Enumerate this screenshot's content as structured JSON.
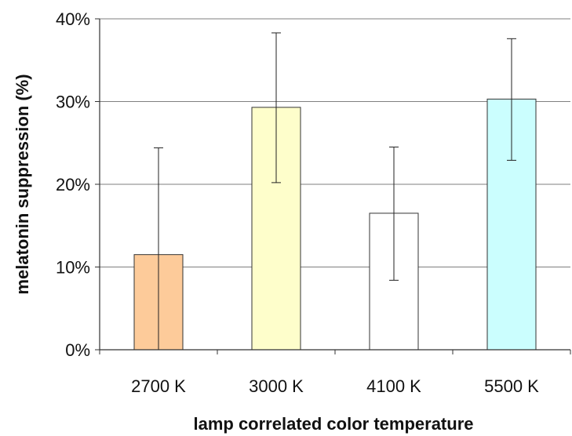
{
  "chart_data": {
    "type": "bar",
    "xlabel": "lamp correlated color temperature",
    "ylabel": "melatonin suppression (%)",
    "ylim": [
      0,
      40
    ],
    "yticks": [
      0,
      10,
      20,
      30,
      40
    ],
    "ytick_labels": [
      "0%",
      "10%",
      "20%",
      "30%",
      "40%"
    ],
    "categories": [
      "2700 K",
      "3000 K",
      "4100 K",
      "5500 K"
    ],
    "values": [
      11.5,
      29.3,
      16.5,
      30.3
    ],
    "error_low": [
      0,
      20.2,
      8.4,
      22.9
    ],
    "error_high": [
      24.4,
      38.3,
      24.5,
      37.6
    ],
    "bar_colors": [
      "#fdcb9a",
      "#fefecb",
      "#ffffff",
      "#cbfefe"
    ],
    "grid": true,
    "legend": "none"
  }
}
